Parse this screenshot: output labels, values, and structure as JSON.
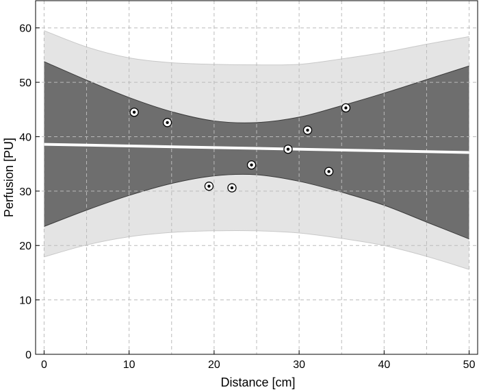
{
  "chart_data": {
    "type": "scatter",
    "title": "",
    "xlabel": "Distance [cm]",
    "ylabel": "Perfusion [PU]",
    "xlim": [
      -1,
      51
    ],
    "ylim": [
      0,
      65
    ],
    "xticks": [
      0,
      10,
      20,
      30,
      40,
      50
    ],
    "yticks": [
      0,
      10,
      20,
      30,
      40,
      50,
      60
    ],
    "xgrid": [
      0,
      5,
      10,
      15,
      20,
      25,
      30,
      35,
      40,
      45,
      50
    ],
    "ygrid": [
      10,
      20,
      30,
      40,
      50,
      60
    ],
    "grid": true,
    "points": [
      {
        "x": 10.6,
        "y": 44.5
      },
      {
        "x": 14.5,
        "y": 42.6
      },
      {
        "x": 19.4,
        "y": 30.9
      },
      {
        "x": 22.1,
        "y": 30.6
      },
      {
        "x": 24.4,
        "y": 34.8
      },
      {
        "x": 28.7,
        "y": 37.7
      },
      {
        "x": 31.0,
        "y": 41.2
      },
      {
        "x": 33.5,
        "y": 33.6
      },
      {
        "x": 35.5,
        "y": 45.3
      }
    ],
    "fit_line": {
      "x": [
        0,
        50
      ],
      "y": [
        38.6,
        37.1
      ]
    },
    "confidence_band": {
      "x": [
        0,
        5,
        10,
        15,
        20,
        25,
        30,
        35,
        40,
        45,
        50
      ],
      "lower": [
        23.5,
        26.5,
        29.2,
        31.4,
        32.8,
        33.0,
        31.8,
        29.8,
        27.4,
        24.3,
        21.2
      ],
      "upper": [
        53.8,
        50.4,
        47.2,
        44.6,
        42.9,
        42.6,
        43.6,
        45.7,
        48.0,
        50.5,
        53.0
      ]
    },
    "prediction_band": {
      "x": [
        0,
        5,
        10,
        15,
        20,
        25,
        30,
        35,
        40,
        45,
        50
      ],
      "lower": [
        17.9,
        20.1,
        21.6,
        22.4,
        22.7,
        22.7,
        22.3,
        21.3,
        20.0,
        18.0,
        15.6
      ],
      "upper": [
        59.5,
        56.5,
        54.5,
        53.6,
        53.3,
        53.2,
        53.3,
        54.3,
        55.5,
        57.0,
        58.4
      ]
    },
    "colors": {
      "prediction_band": "#e4e4e4",
      "confidence_band": "#6e6e6e",
      "fit_line": "#ffffff",
      "grid": "#bbbbbb",
      "marker": "#000000"
    }
  }
}
